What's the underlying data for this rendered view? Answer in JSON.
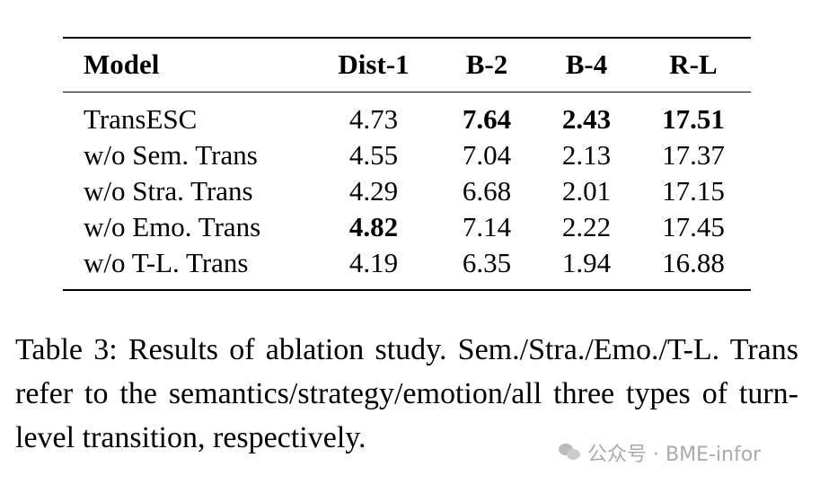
{
  "table": {
    "headers": [
      "Model",
      "Dist-1",
      "B-2",
      "B-4",
      "R-L"
    ],
    "rows": [
      {
        "cells": [
          "TransESC",
          "4.73",
          "7.64",
          "2.43",
          "17.51"
        ],
        "bold": [
          false,
          false,
          true,
          true,
          true
        ]
      },
      {
        "cells": [
          "w/o Sem. Trans",
          "4.55",
          "7.04",
          "2.13",
          "17.37"
        ],
        "bold": [
          false,
          false,
          false,
          false,
          false
        ]
      },
      {
        "cells": [
          "w/o Stra. Trans",
          "4.29",
          "6.68",
          "2.01",
          "17.15"
        ],
        "bold": [
          false,
          false,
          false,
          false,
          false
        ]
      },
      {
        "cells": [
          "w/o Emo. Trans",
          "4.82",
          "7.14",
          "2.22",
          "17.45"
        ],
        "bold": [
          false,
          true,
          false,
          false,
          false
        ]
      },
      {
        "cells": [
          "w/o T-L. Trans",
          "4.19",
          "6.35",
          "1.94",
          "16.88"
        ],
        "bold": [
          false,
          false,
          false,
          false,
          false
        ]
      }
    ]
  },
  "caption": "Table 3: Results of ablation study. Sem./Stra./Emo./T-L. Trans refer to the semantics/strategy/emotion/all three types of turn-level transition, respectively.",
  "watermark": {
    "text": "公众号 · BME-infor",
    "icon": "wechat-icon"
  }
}
